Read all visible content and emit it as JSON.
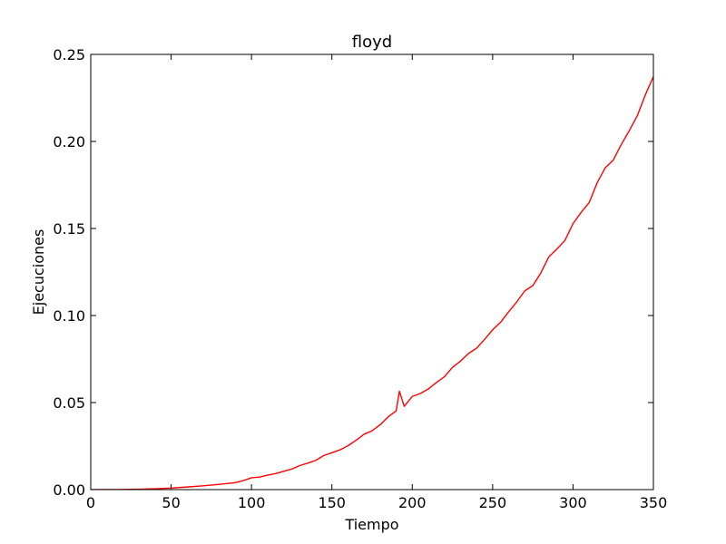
{
  "chart_data": {
    "type": "line",
    "title": "floyd",
    "xlabel": "Tiempo",
    "ylabel": "Ejecuciones",
    "xlim": [
      0,
      350
    ],
    "ylim": [
      0,
      0.25
    ],
    "xticks": [
      0,
      50,
      100,
      150,
      200,
      250,
      300,
      350
    ],
    "yticks": [
      0.0,
      0.05,
      0.1,
      0.15,
      0.2,
      0.25
    ],
    "xtick_labels": [
      "0",
      "50",
      "100",
      "150",
      "200",
      "250",
      "300",
      "350"
    ],
    "ytick_labels": [
      "0.00",
      "0.05",
      "0.10",
      "0.15",
      "0.20",
      "0.25"
    ],
    "grid": false,
    "series": [
      {
        "color": "#ff0000",
        "x": [
          0,
          10,
          20,
          30,
          40,
          50,
          60,
          70,
          80,
          90,
          95,
          100,
          105,
          110,
          115,
          120,
          125,
          130,
          135,
          140,
          145,
          150,
          155,
          160,
          165,
          170,
          175,
          180,
          185,
          190,
          192,
          195,
          200,
          205,
          210,
          215,
          220,
          225,
          230,
          235,
          240,
          245,
          250,
          255,
          260,
          265,
          270,
          275,
          280,
          285,
          290,
          295,
          300,
          305,
          310,
          315,
          320,
          325,
          330,
          335,
          340,
          345,
          350
        ],
        "y": [
          0.0,
          0.0,
          0.0001,
          0.0002,
          0.0005,
          0.0009,
          0.0015,
          0.0022,
          0.003,
          0.004,
          0.0052,
          0.0068,
          0.0072,
          0.0083,
          0.0092,
          0.0105,
          0.0118,
          0.0138,
          0.0152,
          0.0168,
          0.0196,
          0.0212,
          0.0228,
          0.0252,
          0.0283,
          0.0318,
          0.0338,
          0.0372,
          0.0418,
          0.0452,
          0.0565,
          0.0478,
          0.0535,
          0.0552,
          0.0578,
          0.0615,
          0.0648,
          0.0702,
          0.0738,
          0.0782,
          0.0812,
          0.0863,
          0.0918,
          0.0962,
          0.1022,
          0.1078,
          0.1142,
          0.1172,
          0.1245,
          0.1338,
          0.1382,
          0.1432,
          0.1528,
          0.1592,
          0.1648,
          0.1762,
          0.1848,
          0.1892,
          0.1982,
          0.2062,
          0.2148,
          0.2268,
          0.2372
        ]
      }
    ]
  }
}
